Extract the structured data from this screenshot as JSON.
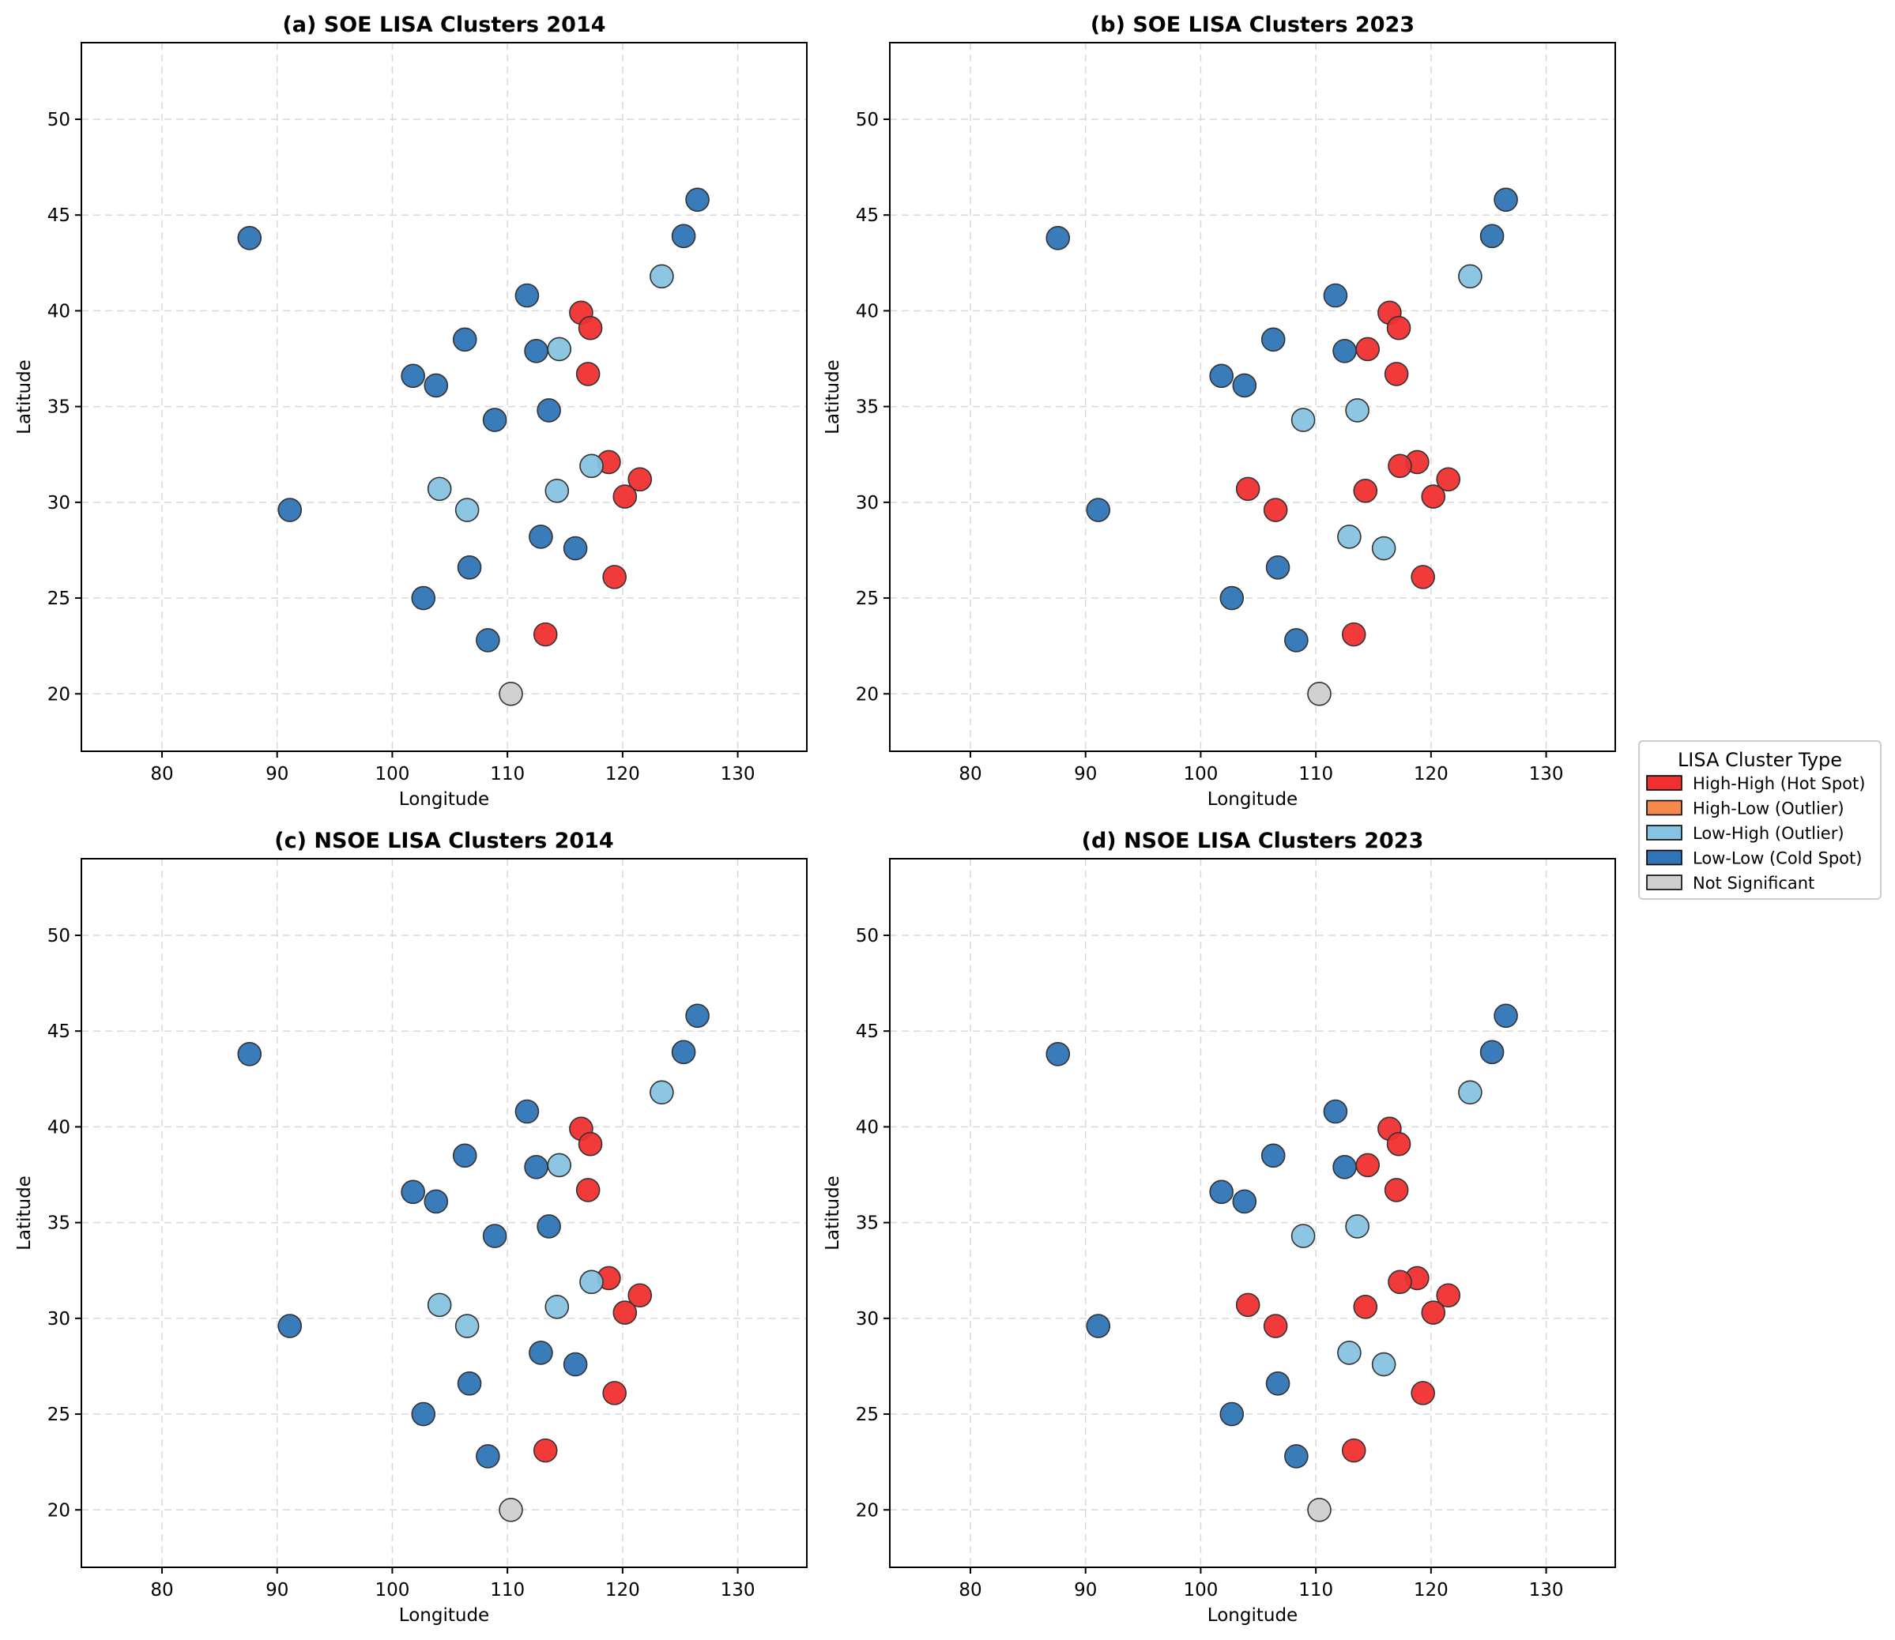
{
  "categories": {
    "HH": {
      "label": "High-High (Hot Spot)",
      "color": "#f03030"
    },
    "HL": {
      "label": "High-Low (Outlier)",
      "color": "#f4894e"
    },
    "LH": {
      "label": "Low-High (Outlier)",
      "color": "#86c3e0"
    },
    "LL": {
      "label": "Low-Low (Cold Spot)",
      "color": "#2f74b5"
    },
    "NS": {
      "label": "Not Significant",
      "color": "#cfcfcf"
    }
  },
  "legend": {
    "title": "LISA Cluster Type",
    "order": [
      "HH",
      "HL",
      "LH",
      "LL",
      "NS"
    ]
  },
  "axes": {
    "xlabel": "Longitude",
    "ylabel": "Latitude",
    "xlim": [
      73,
      136
    ],
    "ylim": [
      17,
      54
    ],
    "xticks": [
      80,
      90,
      100,
      110,
      120,
      130
    ],
    "yticks": [
      20,
      25,
      30,
      35,
      40,
      45,
      50
    ]
  },
  "chart_data": [
    {
      "type": "scatter",
      "title": "(a) SOE LISA Clusters 2014",
      "points": [
        {
          "x": 87.6,
          "y": 43.8,
          "c": "LL"
        },
        {
          "x": 126.5,
          "y": 45.8,
          "c": "LL"
        },
        {
          "x": 125.3,
          "y": 43.9,
          "c": "LL"
        },
        {
          "x": 123.4,
          "y": 41.8,
          "c": "LH"
        },
        {
          "x": 111.7,
          "y": 40.8,
          "c": "LL"
        },
        {
          "x": 116.4,
          "y": 39.9,
          "c": "HH"
        },
        {
          "x": 117.2,
          "y": 39.1,
          "c": "HH"
        },
        {
          "x": 106.3,
          "y": 38.5,
          "c": "LL"
        },
        {
          "x": 112.5,
          "y": 37.9,
          "c": "LL"
        },
        {
          "x": 114.5,
          "y": 38.0,
          "c": "LH"
        },
        {
          "x": 117.0,
          "y": 36.7,
          "c": "HH"
        },
        {
          "x": 101.8,
          "y": 36.6,
          "c": "LL"
        },
        {
          "x": 103.8,
          "y": 36.1,
          "c": "LL"
        },
        {
          "x": 113.6,
          "y": 34.8,
          "c": "LL"
        },
        {
          "x": 108.9,
          "y": 34.3,
          "c": "LL"
        },
        {
          "x": 118.8,
          "y": 32.1,
          "c": "HH"
        },
        {
          "x": 117.3,
          "y": 31.9,
          "c": "LH"
        },
        {
          "x": 121.5,
          "y": 31.2,
          "c": "HH"
        },
        {
          "x": 120.2,
          "y": 30.3,
          "c": "HH"
        },
        {
          "x": 104.1,
          "y": 30.7,
          "c": "LH"
        },
        {
          "x": 114.3,
          "y": 30.6,
          "c": "LH"
        },
        {
          "x": 106.5,
          "y": 29.6,
          "c": "LH"
        },
        {
          "x": 91.1,
          "y": 29.6,
          "c": "LL"
        },
        {
          "x": 112.9,
          "y": 28.2,
          "c": "LL"
        },
        {
          "x": 115.9,
          "y": 27.6,
          "c": "LL"
        },
        {
          "x": 106.7,
          "y": 26.6,
          "c": "LL"
        },
        {
          "x": 119.3,
          "y": 26.1,
          "c": "HH"
        },
        {
          "x": 102.7,
          "y": 25.0,
          "c": "LL"
        },
        {
          "x": 113.3,
          "y": 23.1,
          "c": "HH"
        },
        {
          "x": 108.3,
          "y": 22.8,
          "c": "LL"
        },
        {
          "x": 110.3,
          "y": 20.0,
          "c": "NS"
        }
      ]
    },
    {
      "type": "scatter",
      "title": "(b) SOE LISA Clusters 2023",
      "points": [
        {
          "x": 87.6,
          "y": 43.8,
          "c": "LL"
        },
        {
          "x": 126.5,
          "y": 45.8,
          "c": "LL"
        },
        {
          "x": 125.3,
          "y": 43.9,
          "c": "LL"
        },
        {
          "x": 123.4,
          "y": 41.8,
          "c": "LH"
        },
        {
          "x": 111.7,
          "y": 40.8,
          "c": "LL"
        },
        {
          "x": 116.4,
          "y": 39.9,
          "c": "HH"
        },
        {
          "x": 117.2,
          "y": 39.1,
          "c": "HH"
        },
        {
          "x": 106.3,
          "y": 38.5,
          "c": "LL"
        },
        {
          "x": 112.5,
          "y": 37.9,
          "c": "LL"
        },
        {
          "x": 114.5,
          "y": 38.0,
          "c": "HH"
        },
        {
          "x": 117.0,
          "y": 36.7,
          "c": "HH"
        },
        {
          "x": 101.8,
          "y": 36.6,
          "c": "LL"
        },
        {
          "x": 103.8,
          "y": 36.1,
          "c": "LL"
        },
        {
          "x": 113.6,
          "y": 34.8,
          "c": "LH"
        },
        {
          "x": 108.9,
          "y": 34.3,
          "c": "LH"
        },
        {
          "x": 118.8,
          "y": 32.1,
          "c": "HH"
        },
        {
          "x": 117.3,
          "y": 31.9,
          "c": "HH"
        },
        {
          "x": 121.5,
          "y": 31.2,
          "c": "HH"
        },
        {
          "x": 120.2,
          "y": 30.3,
          "c": "HH"
        },
        {
          "x": 104.1,
          "y": 30.7,
          "c": "HH"
        },
        {
          "x": 114.3,
          "y": 30.6,
          "c": "HH"
        },
        {
          "x": 106.5,
          "y": 29.6,
          "c": "HH"
        },
        {
          "x": 91.1,
          "y": 29.6,
          "c": "LL"
        },
        {
          "x": 112.9,
          "y": 28.2,
          "c": "LH"
        },
        {
          "x": 115.9,
          "y": 27.6,
          "c": "LH"
        },
        {
          "x": 106.7,
          "y": 26.6,
          "c": "LL"
        },
        {
          "x": 119.3,
          "y": 26.1,
          "c": "HH"
        },
        {
          "x": 102.7,
          "y": 25.0,
          "c": "LL"
        },
        {
          "x": 113.3,
          "y": 23.1,
          "c": "HH"
        },
        {
          "x": 108.3,
          "y": 22.8,
          "c": "LL"
        },
        {
          "x": 110.3,
          "y": 20.0,
          "c": "NS"
        }
      ]
    },
    {
      "type": "scatter",
      "title": "(c) NSOE LISA Clusters 2014",
      "points": [
        {
          "x": 87.6,
          "y": 43.8,
          "c": "LL"
        },
        {
          "x": 126.5,
          "y": 45.8,
          "c": "LL"
        },
        {
          "x": 125.3,
          "y": 43.9,
          "c": "LL"
        },
        {
          "x": 123.4,
          "y": 41.8,
          "c": "LH"
        },
        {
          "x": 111.7,
          "y": 40.8,
          "c": "LL"
        },
        {
          "x": 116.4,
          "y": 39.9,
          "c": "HH"
        },
        {
          "x": 117.2,
          "y": 39.1,
          "c": "HH"
        },
        {
          "x": 106.3,
          "y": 38.5,
          "c": "LL"
        },
        {
          "x": 112.5,
          "y": 37.9,
          "c": "LL"
        },
        {
          "x": 114.5,
          "y": 38.0,
          "c": "LH"
        },
        {
          "x": 117.0,
          "y": 36.7,
          "c": "HH"
        },
        {
          "x": 101.8,
          "y": 36.6,
          "c": "LL"
        },
        {
          "x": 103.8,
          "y": 36.1,
          "c": "LL"
        },
        {
          "x": 113.6,
          "y": 34.8,
          "c": "LL"
        },
        {
          "x": 108.9,
          "y": 34.3,
          "c": "LL"
        },
        {
          "x": 118.8,
          "y": 32.1,
          "c": "HH"
        },
        {
          "x": 117.3,
          "y": 31.9,
          "c": "LH"
        },
        {
          "x": 121.5,
          "y": 31.2,
          "c": "HH"
        },
        {
          "x": 120.2,
          "y": 30.3,
          "c": "HH"
        },
        {
          "x": 104.1,
          "y": 30.7,
          "c": "LH"
        },
        {
          "x": 114.3,
          "y": 30.6,
          "c": "LH"
        },
        {
          "x": 106.5,
          "y": 29.6,
          "c": "LH"
        },
        {
          "x": 91.1,
          "y": 29.6,
          "c": "LL"
        },
        {
          "x": 112.9,
          "y": 28.2,
          "c": "LL"
        },
        {
          "x": 115.9,
          "y": 27.6,
          "c": "LL"
        },
        {
          "x": 106.7,
          "y": 26.6,
          "c": "LL"
        },
        {
          "x": 119.3,
          "y": 26.1,
          "c": "HH"
        },
        {
          "x": 102.7,
          "y": 25.0,
          "c": "LL"
        },
        {
          "x": 113.3,
          "y": 23.1,
          "c": "HH"
        },
        {
          "x": 108.3,
          "y": 22.8,
          "c": "LL"
        },
        {
          "x": 110.3,
          "y": 20.0,
          "c": "NS"
        }
      ]
    },
    {
      "type": "scatter",
      "title": "(d) NSOE LISA Clusters 2023",
      "points": [
        {
          "x": 87.6,
          "y": 43.8,
          "c": "LL"
        },
        {
          "x": 126.5,
          "y": 45.8,
          "c": "LL"
        },
        {
          "x": 125.3,
          "y": 43.9,
          "c": "LL"
        },
        {
          "x": 123.4,
          "y": 41.8,
          "c": "LH"
        },
        {
          "x": 111.7,
          "y": 40.8,
          "c": "LL"
        },
        {
          "x": 116.4,
          "y": 39.9,
          "c": "HH"
        },
        {
          "x": 117.2,
          "y": 39.1,
          "c": "HH"
        },
        {
          "x": 106.3,
          "y": 38.5,
          "c": "LL"
        },
        {
          "x": 112.5,
          "y": 37.9,
          "c": "LL"
        },
        {
          "x": 114.5,
          "y": 38.0,
          "c": "HH"
        },
        {
          "x": 117.0,
          "y": 36.7,
          "c": "HH"
        },
        {
          "x": 101.8,
          "y": 36.6,
          "c": "LL"
        },
        {
          "x": 103.8,
          "y": 36.1,
          "c": "LL"
        },
        {
          "x": 113.6,
          "y": 34.8,
          "c": "LH"
        },
        {
          "x": 108.9,
          "y": 34.3,
          "c": "LH"
        },
        {
          "x": 118.8,
          "y": 32.1,
          "c": "HH"
        },
        {
          "x": 117.3,
          "y": 31.9,
          "c": "HH"
        },
        {
          "x": 121.5,
          "y": 31.2,
          "c": "HH"
        },
        {
          "x": 120.2,
          "y": 30.3,
          "c": "HH"
        },
        {
          "x": 104.1,
          "y": 30.7,
          "c": "HH"
        },
        {
          "x": 114.3,
          "y": 30.6,
          "c": "HH"
        },
        {
          "x": 106.5,
          "y": 29.6,
          "c": "HH"
        },
        {
          "x": 91.1,
          "y": 29.6,
          "c": "LL"
        },
        {
          "x": 112.9,
          "y": 28.2,
          "c": "LH"
        },
        {
          "x": 115.9,
          "y": 27.6,
          "c": "LH"
        },
        {
          "x": 106.7,
          "y": 26.6,
          "c": "LL"
        },
        {
          "x": 119.3,
          "y": 26.1,
          "c": "HH"
        },
        {
          "x": 102.7,
          "y": 25.0,
          "c": "LL"
        },
        {
          "x": 113.3,
          "y": 23.1,
          "c": "HH"
        },
        {
          "x": 108.3,
          "y": 22.8,
          "c": "LL"
        },
        {
          "x": 110.3,
          "y": 20.0,
          "c": "NS"
        }
      ]
    }
  ]
}
